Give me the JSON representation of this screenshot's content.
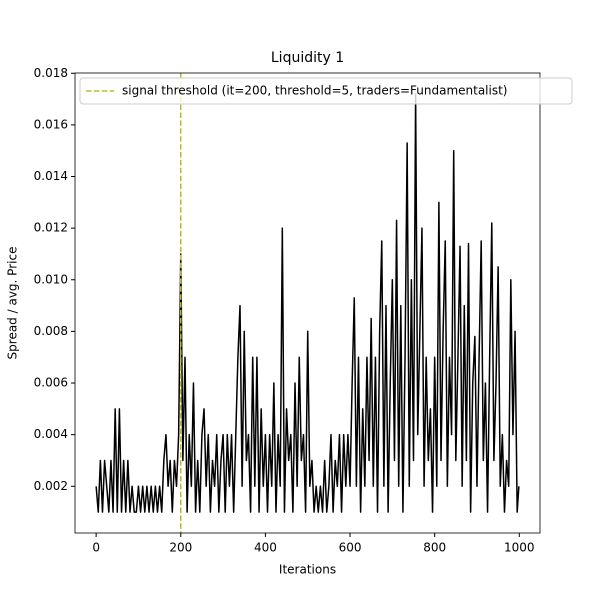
{
  "chart_data": {
    "type": "line",
    "title": "Liquidity 1",
    "x_label": "Iterations",
    "y_label": "Spread / avg. Price",
    "x": [
      0,
      5,
      10,
      15,
      20,
      25,
      30,
      35,
      40,
      45,
      50,
      55,
      60,
      65,
      70,
      75,
      80,
      85,
      90,
      95,
      100,
      105,
      110,
      115,
      120,
      125,
      130,
      135,
      140,
      145,
      150,
      155,
      160,
      165,
      170,
      175,
      180,
      185,
      190,
      195,
      200,
      205,
      210,
      215,
      220,
      225,
      230,
      235,
      240,
      245,
      250,
      255,
      260,
      265,
      270,
      275,
      280,
      285,
      290,
      295,
      300,
      305,
      310,
      315,
      320,
      325,
      330,
      335,
      340,
      345,
      350,
      355,
      360,
      365,
      370,
      375,
      380,
      385,
      390,
      395,
      400,
      405,
      410,
      415,
      420,
      425,
      430,
      435,
      440,
      445,
      450,
      455,
      460,
      465,
      470,
      475,
      480,
      485,
      490,
      495,
      500,
      505,
      510,
      515,
      520,
      525,
      530,
      535,
      540,
      545,
      550,
      555,
      560,
      565,
      570,
      575,
      580,
      585,
      590,
      595,
      600,
      605,
      610,
      615,
      620,
      625,
      630,
      635,
      640,
      645,
      650,
      655,
      660,
      665,
      670,
      675,
      680,
      685,
      690,
      695,
      700,
      705,
      710,
      715,
      720,
      725,
      730,
      735,
      740,
      745,
      750,
      755,
      760,
      765,
      770,
      775,
      780,
      785,
      790,
      795,
      800,
      805,
      810,
      815,
      820,
      825,
      830,
      835,
      840,
      845,
      850,
      855,
      860,
      865,
      870,
      875,
      880,
      885,
      890,
      895,
      900,
      905,
      910,
      915,
      920,
      925,
      930,
      935,
      940,
      945,
      950,
      955,
      960,
      965,
      970,
      975,
      980,
      985,
      990,
      995,
      999
    ],
    "series": [
      {
        "name": "Spread",
        "color": "#000000",
        "values": [
          0.002,
          0.001,
          0.003,
          0.001,
          0.003,
          0.002,
          0.001,
          0.003,
          0.001,
          0.005,
          0.001,
          0.005,
          0.001,
          0.003,
          0.001,
          0.003,
          0.001,
          0.002,
          0.001,
          0.001,
          0.002,
          0.001,
          0.002,
          0.001,
          0.002,
          0.001,
          0.002,
          0.001,
          0.002,
          0.001,
          0.002,
          0.001,
          0.003,
          0.004,
          0.002,
          0.003,
          0.001,
          0.003,
          0.002,
          0.004,
          0.011,
          0.003,
          0.007,
          0.001,
          0.004,
          0.002,
          0.006,
          0.001,
          0.003,
          0.001,
          0.004,
          0.005,
          0.002,
          0.004,
          0.001,
          0.003,
          0.002,
          0.004,
          0.001,
          0.003,
          0.004,
          0.001,
          0.004,
          0.002,
          0.004,
          0.001,
          0.004,
          0.007,
          0.009,
          0.002,
          0.008,
          0.003,
          0.004,
          0.001,
          0.007,
          0.002,
          0.007,
          0.001,
          0.005,
          0.002,
          0.004,
          0.001,
          0.004,
          0.002,
          0.006,
          0.001,
          0.004,
          0.002,
          0.012,
          0.001,
          0.005,
          0.003,
          0.004,
          0.001,
          0.006,
          0.002,
          0.007,
          0.003,
          0.004,
          0.001,
          0.008,
          0.002,
          0.003,
          0.001,
          0.002,
          0.001,
          0.002,
          0.001,
          0.003,
          0.001,
          0.002,
          0.004,
          0.001,
          0.003,
          0.002,
          0.004,
          0.001,
          0.004,
          0.002,
          0.004,
          0.002,
          0.006,
          0.0093,
          0.002,
          0.007,
          0.001,
          0.005,
          0.002,
          0.007,
          0.003,
          0.0085,
          0.002,
          0.007,
          0.001,
          0.008,
          0.0115,
          0.002,
          0.009,
          0.001,
          0.006,
          0.01,
          0.003,
          0.0123,
          0.002,
          0.009,
          0.001,
          0.007,
          0.0153,
          0.002,
          0.01,
          0.003,
          0.0172,
          0.004,
          0.008,
          0.012,
          0.002,
          0.007,
          0.003,
          0.005,
          0.001,
          0.007,
          0.002,
          0.013,
          0.003,
          0.008,
          0.0115,
          0.002,
          0.007,
          0.004,
          0.015,
          0.003,
          0.007,
          0.0113,
          0.002,
          0.009,
          0.003,
          0.0114,
          0.001,
          0.006,
          0.0078,
          0.002,
          0.007,
          0.0115,
          0.003,
          0.006,
          0.001,
          0.007,
          0.0122,
          0.003,
          0.006,
          0.0105,
          0.002,
          0.004,
          0.001,
          0.003,
          0.002,
          0.01,
          0.004,
          0.008,
          0.001,
          0.002
        ]
      }
    ],
    "threshold": {
      "x": 200,
      "label": "signal threshold (it=200, threshold=5, traders=Fundamentalist)",
      "color": "#bcbd22"
    },
    "legend": "upper left",
    "xlim": [
      -49.95,
      1048.95
    ],
    "xticks": [
      0,
      200,
      400,
      600,
      800,
      1000
    ],
    "ylim": [
      0.00019,
      0.01801
    ],
    "yticks": [
      0.002,
      0.004,
      0.006,
      0.008,
      {
        "value": 0.01,
        "label": "0.010"
      },
      0.012,
      0.014,
      0.016,
      0.018
    ]
  }
}
